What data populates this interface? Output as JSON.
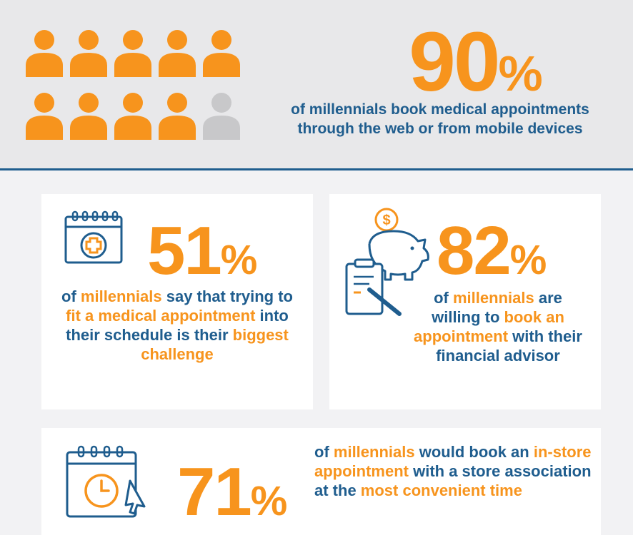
{
  "colors": {
    "accent": "#f7941d",
    "primary": "#1f5d8e",
    "inactive": "#c8c8ca"
  },
  "hero": {
    "icon": "person-icon",
    "people_filled": 9,
    "people_total": 10,
    "value": "90",
    "pct": "%",
    "line1": "of millennials book medical appointments",
    "line2": "through the web or from mobile devices"
  },
  "stats": [
    {
      "icon": "calendar-medical-icon",
      "value": "51",
      "pct": "%",
      "parts": [
        "of ",
        "millennials",
        " say that trying to ",
        "fit a medical appointment",
        " into their schedule is their ",
        "biggest challenge"
      ]
    },
    {
      "icon": "piggy-bank-clipboard-icon",
      "value": "82",
      "pct": "%",
      "parts": [
        "of ",
        "millennials",
        " are willing to ",
        "book an appointment",
        " with their financial advisor"
      ]
    },
    {
      "icon": "calendar-clock-icon",
      "value": "71",
      "pct": "%",
      "parts": [
        "of ",
        "millennials",
        " would book an ",
        "in-store appointment",
        " with a store association at the ",
        "most convenient time"
      ]
    }
  ]
}
